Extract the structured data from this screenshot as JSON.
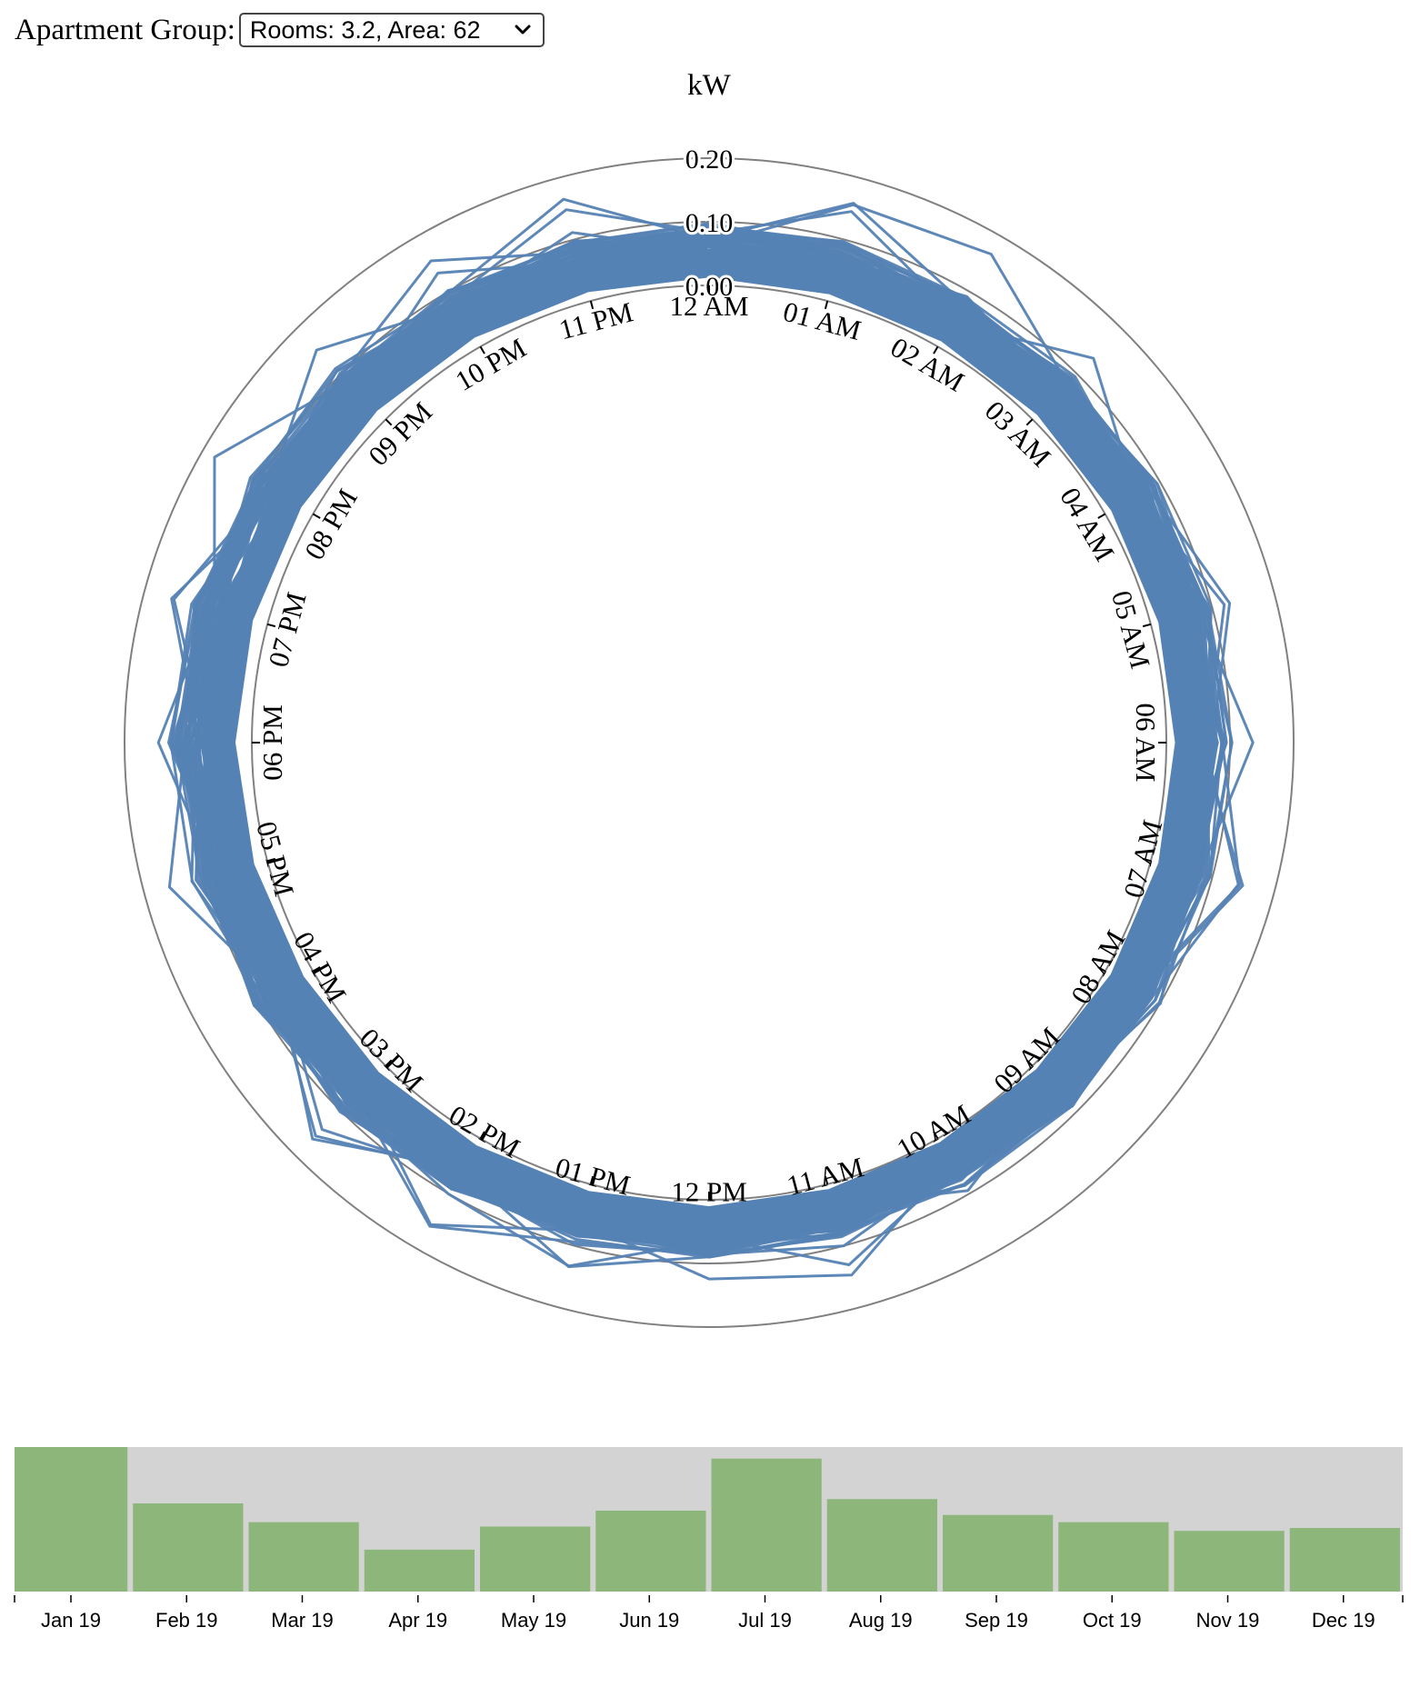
{
  "selector": {
    "label": "Apartment Group:",
    "selected": "Rooms: 3.2, Area: 62"
  },
  "chart_data": [
    {
      "type": "radial-line",
      "title": "kW",
      "radial_axis": {
        "ticks": [
          "0.20",
          "0.10",
          "0.00"
        ],
        "values": [
          0.2,
          0.1,
          0.0
        ]
      },
      "angular_axis": {
        "labels": [
          "12 AM",
          "01 AM",
          "02 AM",
          "03 AM",
          "04 AM",
          "05 AM",
          "06 AM",
          "07 AM",
          "08 AM",
          "09 AM",
          "10 AM",
          "11 AM",
          "12 PM",
          "01 PM",
          "02 PM",
          "03 PM",
          "04 PM",
          "05 PM",
          "06 PM",
          "07 PM",
          "08 PM",
          "09 PM",
          "10 PM",
          "11 PM"
        ]
      },
      "series_count": 365,
      "color": "#5582b4",
      "typical_profile_kw": {
        "hours": [
          0,
          1,
          2,
          3,
          4,
          5,
          6,
          7,
          8,
          9,
          10,
          11,
          12,
          13,
          14,
          15,
          16,
          17,
          18,
          19,
          20,
          21,
          22,
          23
        ],
        "low": [
          0.0,
          0.0,
          0.0,
          0.0,
          0.0,
          0.0,
          0.0,
          0.0,
          0.0,
          0.0,
          0.0,
          0.0,
          0.0,
          0.0,
          0.0,
          0.0,
          0.0,
          0.0,
          0.0,
          0.0,
          0.0,
          0.0,
          0.0,
          0.0
        ],
        "high": [
          0.085,
          0.082,
          0.08,
          0.08,
          0.082,
          0.085,
          0.088,
          0.085,
          0.08,
          0.075,
          0.072,
          0.075,
          0.08,
          0.082,
          0.085,
          0.09,
          0.095,
          0.105,
          0.115,
          0.11,
          0.105,
          0.1,
          0.095,
          0.09
        ]
      }
    },
    {
      "type": "bar",
      "categories": [
        "Jan 19",
        "Feb 19",
        "Mar 19",
        "Apr 19",
        "May 19",
        "Jun 19",
        "Jul 19",
        "Aug 19",
        "Sep 19",
        "Oct 19",
        "Nov 19",
        "Dec 19"
      ],
      "values": [
        100,
        61,
        48,
        29,
        45,
        56,
        92,
        64,
        53,
        48,
        42,
        44
      ],
      "ylim": [
        0,
        100
      ],
      "bar_color": "#8db77a",
      "background_color": "#d3d3d3"
    }
  ]
}
